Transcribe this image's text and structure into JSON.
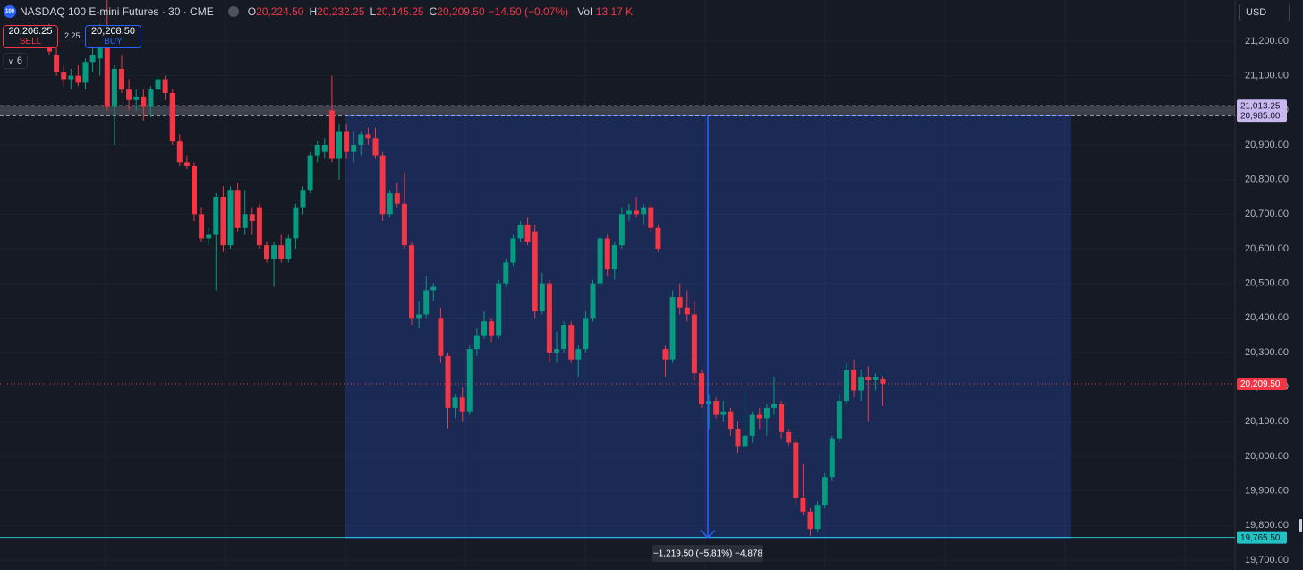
{
  "header": {
    "logo": "100",
    "symbol": "NASDAQ 100 E-mini Futures · 30 · CME",
    "ohlc": [
      {
        "key": "O",
        "value": "20,224.50"
      },
      {
        "key": "H",
        "value": "20,232.25"
      },
      {
        "key": "L",
        "value": "20,145.25"
      },
      {
        "key": "C",
        "value": "20,209.50"
      }
    ],
    "change": "−14.50 (−0.07%)",
    "vol_key": "Vol",
    "vol": "13.17 K"
  },
  "trade": {
    "sell_price": "20,206.25",
    "sell_label": "SELL",
    "spread": "2.25",
    "buy_price": "20,208.50",
    "buy_label": "BUY",
    "indicator_count": "6"
  },
  "currency": "USD",
  "chart_data": {
    "type": "candlestick",
    "categories": [
      null,
      null,
      null,
      null,
      null,
      null,
      null,
      null,
      null,
      null,
      null,
      null,
      null,
      null,
      null,
      null,
      null,
      null,
      null,
      null,
      null,
      null,
      null,
      null,
      null,
      null,
      null,
      null,
      null,
      null,
      null,
      null,
      null,
      null,
      null,
      null,
      null,
      null,
      null,
      null,
      null,
      null,
      null,
      null,
      null,
      null,
      null,
      null,
      null,
      null,
      null,
      null,
      null,
      null,
      null,
      null,
      null,
      null,
      null,
      null,
      null,
      null,
      null,
      null,
      null,
      null,
      null,
      null,
      null,
      null,
      null,
      null,
      null,
      null,
      null,
      null,
      null,
      null,
      null,
      null,
      null,
      null,
      null,
      null,
      null,
      null,
      null,
      null,
      null,
      null,
      null,
      null,
      null,
      null,
      null,
      null,
      null,
      null,
      null,
      null,
      null,
      null,
      null,
      null,
      null,
      null,
      null,
      null,
      null,
      null,
      null,
      null,
      null,
      null,
      null,
      null
    ],
    "open": [
      21190,
      21160,
      21110,
      21090,
      21100,
      21080,
      21140,
      21150,
      21200,
      21010,
      21120,
      21060,
      21030,
      21040,
      21010,
      21060,
      21090,
      21050,
      20910,
      20850,
      20840,
      20700,
      20630,
      20640,
      20750,
      20610,
      20770,
      20660,
      20700,
      20720,
      20610,
      20570,
      20610,
      20570,
      20630,
      20720,
      20770,
      20870,
      20880,
      21000,
      20860,
      20940,
      20880,
      20900,
      20930,
      20920,
      20870,
      20700,
      20760,
      20730,
      20610,
      20400,
      20410,
      20480,
      20400,
      20290,
      20140,
      20170,
      20130,
      20310,
      20350,
      20390,
      20350,
      20500,
      20560,
      20630,
      20670,
      20650,
      20420,
      20500,
      20300,
      20310,
      20380,
      20280,
      20310,
      20400,
      20500,
      20630,
      20540,
      20610,
      20700,
      20710,
      20700,
      20720,
      20660,
      20310,
      20280,
      20460,
      20430,
      20410,
      20240,
      20150,
      20160,
      20120,
      20130,
      20080,
      20030,
      20060,
      20120,
      20110,
      20140,
      20150,
      20070,
      20040,
      19880,
      19840,
      19790,
      19860,
      19940,
      20050,
      20160,
      20250,
      20190,
      20230,
      20220,
      20224.5
    ],
    "high": [
      21250,
      21180,
      21130,
      21120,
      21130,
      21150,
      21180,
      21250,
      21320,
      21130,
      21160,
      21090,
      21060,
      21060,
      21070,
      21100,
      21100,
      21060,
      20930,
      20870,
      20850,
      20720,
      20660,
      20760,
      20780,
      20780,
      20790,
      20770,
      20720,
      20730,
      20620,
      20620,
      20640,
      20640,
      20730,
      20780,
      20880,
      20910,
      20920,
      21100,
      20960,
      20960,
      20940,
      20940,
      20950,
      20950,
      20880,
      20770,
      20790,
      20820,
      20620,
      20450,
      20520,
      20500,
      20430,
      20300,
      20180,
      20200,
      20320,
      20370,
      20420,
      20400,
      20510,
      20570,
      20640,
      20680,
      20690,
      20670,
      20530,
      20510,
      20360,
      20390,
      20390,
      20320,
      20420,
      20510,
      20640,
      20640,
      20620,
      20720,
      20730,
      20750,
      20730,
      20730,
      20670,
      20320,
      20480,
      20500,
      20480,
      20450,
      20250,
      20180,
      20170,
      20160,
      20140,
      20100,
      20190,
      20130,
      20140,
      20150,
      20230,
      20160,
      20080,
      20050,
      19980,
      19850,
      19870,
      19950,
      20060,
      20180,
      20270,
      20280,
      20250,
      20260,
      20240,
      20232.25
    ],
    "low": [
      21160,
      21100,
      21070,
      21060,
      21070,
      21060,
      21110,
      21100,
      21000,
      20900,
      21050,
      21000,
      21000,
      20970,
      20980,
      21040,
      21030,
      20900,
      20840,
      20830,
      20680,
      20620,
      20610,
      20480,
      20590,
      20600,
      20650,
      20640,
      20640,
      20600,
      20560,
      20490,
      20560,
      20560,
      20600,
      20700,
      20760,
      20850,
      20860,
      20850,
      20800,
      20860,
      20850,
      20870,
      20900,
      20860,
      20680,
      20690,
      20720,
      20600,
      20380,
      20370,
      20400,
      20450,
      20270,
      20080,
      20110,
      20100,
      20120,
      20290,
      20340,
      20330,
      20340,
      20490,
      20550,
      20620,
      20610,
      20400,
      20410,
      20270,
      20270,
      20300,
      20270,
      20230,
      20300,
      20390,
      20490,
      20520,
      20510,
      20600,
      20680,
      20690,
      20670,
      20650,
      20590,
      20230,
      20270,
      20410,
      20390,
      20220,
      20140,
      20080,
      20110,
      20100,
      20060,
      20010,
      20020,
      20040,
      20080,
      20060,
      20120,
      20050,
      20030,
      19860,
      19830,
      19770,
      19780,
      19850,
      19930,
      20040,
      20150,
      20170,
      20160,
      20100,
      20190,
      20145.25
    ],
    "close": [
      21170,
      21110,
      21090,
      21100,
      21080,
      21140,
      21160,
      21200,
      21010,
      21120,
      21060,
      21030,
      21040,
      21010,
      21060,
      21090,
      21050,
      20910,
      20850,
      20840,
      20700,
      20630,
      20640,
      20750,
      20610,
      20770,
      20660,
      20700,
      20680,
      20610,
      20570,
      20610,
      20570,
      20630,
      20720,
      20770,
      20870,
      20900,
      20900,
      20860,
      20940,
      20880,
      20900,
      20930,
      20920,
      20870,
      20700,
      20760,
      20730,
      20610,
      20400,
      20410,
      20480,
      20490,
      20290,
      20140,
      20170,
      20130,
      20310,
      20350,
      20390,
      20350,
      20500,
      20560,
      20630,
      20670,
      20620,
      20420,
      20500,
      20300,
      20310,
      20380,
      20280,
      20310,
      20400,
      20500,
      20630,
      20540,
      20610,
      20700,
      20710,
      20700,
      20720,
      20660,
      20600,
      20280,
      20460,
      20430,
      20410,
      20240,
      20150,
      20160,
      20120,
      20130,
      20080,
      20030,
      20060,
      20120,
      20110,
      20140,
      20150,
      20070,
      20040,
      19880,
      19840,
      19790,
      19860,
      19940,
      20050,
      20160,
      20250,
      20190,
      20230,
      20220,
      20230,
      20209.5
    ],
    "up_color": "#089981",
    "down_color": "#f23645",
    "ylim": [
      19671.5,
      21319
    ],
    "yticks": [
      {
        "value": 19700,
        "label": "19,700.00"
      },
      {
        "value": 19800,
        "label": "19,800.00"
      },
      {
        "value": 19900,
        "label": "19,900.00"
      },
      {
        "value": 20000,
        "label": "20,000.00"
      },
      {
        "value": 20100,
        "label": "20,100.00"
      },
      {
        "value": 20200,
        "label": "20,200.00"
      },
      {
        "value": 20300,
        "label": "20,300.00"
      },
      {
        "value": 20400,
        "label": "20,400.00"
      },
      {
        "value": 20500,
        "label": "20,500.00"
      },
      {
        "value": 20600,
        "label": "20,600.00"
      },
      {
        "value": 20700,
        "label": "20,700.00"
      },
      {
        "value": 20800,
        "label": "20,800.00"
      },
      {
        "value": 20900,
        "label": "20,900.00"
      },
      {
        "value": 21000,
        "label": "21,000.00"
      },
      {
        "value": 21100,
        "label": "21,100.00"
      },
      {
        "value": 21200,
        "label": "21,200.00"
      }
    ],
    "grid": true,
    "price_tags": [
      {
        "value": 21013.25,
        "label": "21,013.25",
        "color": "#c9b8f0",
        "line": "dashed"
      },
      {
        "value": 20985,
        "label": "20,985.00",
        "color": "#c9b8f0",
        "line": "dashed"
      },
      {
        "value": 20209.5,
        "label": "20,209.50",
        "color": "#f23645",
        "line": "dotted"
      },
      {
        "value": 19765.5,
        "label": "19,765.50",
        "color": "#22c1c3",
        "line": "solid"
      }
    ],
    "measure": {
      "from": 20985,
      "to": 19765.5,
      "label": "−1,219.50 (−5.81%) −4,878",
      "color": "#2962ff"
    }
  }
}
